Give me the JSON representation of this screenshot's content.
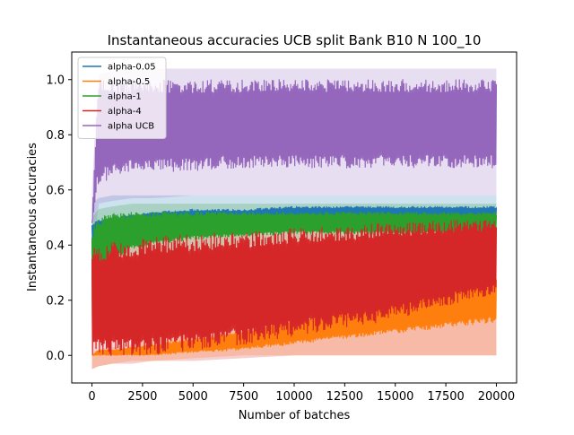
{
  "chart_data": {
    "type": "line",
    "title": "Instantaneous accuracies UCB split Bank B10 N 100_10",
    "xlabel": "Number of batches",
    "ylabel": "Instantaneous accuracies",
    "xlim": [
      -1000,
      21000
    ],
    "ylim": [
      -0.1,
      1.1
    ],
    "x_ticks": [
      0,
      2500,
      5000,
      7500,
      10000,
      12500,
      15000,
      17500,
      20000
    ],
    "x_tick_labels": [
      "0",
      "2500",
      "5000",
      "7500",
      "10000",
      "12500",
      "15000",
      "17500",
      "20000"
    ],
    "y_ticks": [
      0.0,
      0.2,
      0.4,
      0.6,
      0.8,
      1.0
    ],
    "y_tick_labels": [
      "0.0",
      "0.2",
      "0.4",
      "0.6",
      "0.8",
      "1.0"
    ],
    "grid": false,
    "legend_position": "top-left",
    "x_range": [
      0,
      20000
    ],
    "series": [
      {
        "name": "alpha-0.05",
        "color": "#1f77b4",
        "x": [
          0,
          300,
          1000,
          2000,
          3000,
          5000,
          7500,
          10000,
          12500,
          15000,
          17500,
          20000
        ],
        "high": [
          0.48,
          0.49,
          0.5,
          0.51,
          0.52,
          0.53,
          0.53,
          0.54,
          0.54,
          0.54,
          0.54,
          0.54
        ],
        "low": [
          0.4,
          0.44,
          0.46,
          0.47,
          0.48,
          0.48,
          0.48,
          0.49,
          0.49,
          0.49,
          0.49,
          0.49
        ],
        "band_high": [
          0.55,
          0.57,
          0.58,
          0.58,
          0.58,
          0.58,
          0.58,
          0.58,
          0.58,
          0.58,
          0.58,
          0.58
        ],
        "band_low": [
          0.3,
          0.4,
          0.44,
          0.45,
          0.46,
          0.46,
          0.46,
          0.46,
          0.46,
          0.46,
          0.46,
          0.46
        ]
      },
      {
        "name": "alpha-0.5",
        "color": "#ff7f0e",
        "x": [
          0,
          300,
          1000,
          2000,
          3000,
          5000,
          7500,
          10000,
          12500,
          15000,
          17500,
          20000
        ],
        "high": [
          0.0,
          0.02,
          0.02,
          0.03,
          0.04,
          0.06,
          0.09,
          0.13,
          0.17,
          0.2,
          0.24,
          0.28
        ],
        "low": [
          0.0,
          0.0,
          0.0,
          0.0,
          0.0,
          0.01,
          0.02,
          0.04,
          0.06,
          0.08,
          0.1,
          0.12
        ],
        "band_high": [
          0.0,
          0.02,
          0.03,
          0.04,
          0.06,
          0.09,
          0.13,
          0.18,
          0.22,
          0.26,
          0.3,
          0.34
        ],
        "band_low": [
          -0.05,
          -0.04,
          -0.03,
          -0.02,
          -0.02,
          -0.01,
          0.0,
          0.0,
          0.0,
          0.0,
          0.0,
          0.0
        ]
      },
      {
        "name": "alpha-1",
        "color": "#2ca02c",
        "x": [
          0,
          300,
          1000,
          2000,
          3000,
          5000,
          7500,
          10000,
          12500,
          15000,
          17500,
          20000
        ],
        "high": [
          0.46,
          0.5,
          0.52,
          0.52,
          0.52,
          0.52,
          0.52,
          0.52,
          0.52,
          0.52,
          0.52,
          0.52
        ],
        "low": [
          0.0,
          0.28,
          0.34,
          0.38,
          0.4,
          0.42,
          0.43,
          0.44,
          0.44,
          0.44,
          0.44,
          0.44
        ],
        "band_high": [
          0.5,
          0.53,
          0.54,
          0.55,
          0.55,
          0.55,
          0.55,
          0.55,
          0.55,
          0.55,
          0.55,
          0.55
        ],
        "band_low": [
          0.0,
          0.2,
          0.28,
          0.32,
          0.35,
          0.38,
          0.4,
          0.41,
          0.41,
          0.41,
          0.41,
          0.41
        ]
      },
      {
        "name": "alpha-4",
        "color": "#d62728",
        "x": [
          0,
          300,
          1000,
          2000,
          3000,
          5000,
          7500,
          10000,
          12500,
          15000,
          17500,
          20000
        ],
        "high": [
          0.4,
          0.4,
          0.41,
          0.42,
          0.43,
          0.44,
          0.45,
          0.46,
          0.47,
          0.48,
          0.49,
          0.49
        ],
        "low": [
          0.0,
          0.0,
          0.0,
          0.0,
          0.0,
          0.02,
          0.04,
          0.07,
          0.1,
          0.13,
          0.18,
          0.22
        ],
        "band_high": [
          0.44,
          0.45,
          0.46,
          0.47,
          0.48,
          0.49,
          0.5,
          0.51,
          0.52,
          0.52,
          0.52,
          0.52
        ],
        "band_low": [
          -0.05,
          -0.04,
          -0.03,
          -0.03,
          -0.02,
          -0.02,
          -0.01,
          0.0,
          0.0,
          0.0,
          0.0,
          0.0
        ]
      },
      {
        "name": "alpha UCB",
        "color": "#9467bd",
        "x": [
          0,
          300,
          1000,
          2000,
          3000,
          5000,
          7500,
          10000,
          12500,
          15000,
          17500,
          20000
        ],
        "high": [
          0.48,
          1.0,
          1.0,
          1.0,
          1.0,
          1.0,
          1.0,
          1.0,
          1.0,
          1.0,
          1.0,
          1.0
        ],
        "low": [
          0.48,
          0.62,
          0.64,
          0.66,
          0.66,
          0.67,
          0.68,
          0.68,
          0.68,
          0.68,
          0.68,
          0.68
        ],
        "band_high": [
          0.6,
          1.02,
          1.03,
          1.04,
          1.04,
          1.04,
          1.04,
          1.04,
          1.04,
          1.04,
          1.04,
          1.04
        ],
        "band_low": [
          0.3,
          0.55,
          0.56,
          0.57,
          0.57,
          0.58,
          0.58,
          0.58,
          0.58,
          0.58,
          0.58,
          0.58
        ]
      }
    ]
  }
}
